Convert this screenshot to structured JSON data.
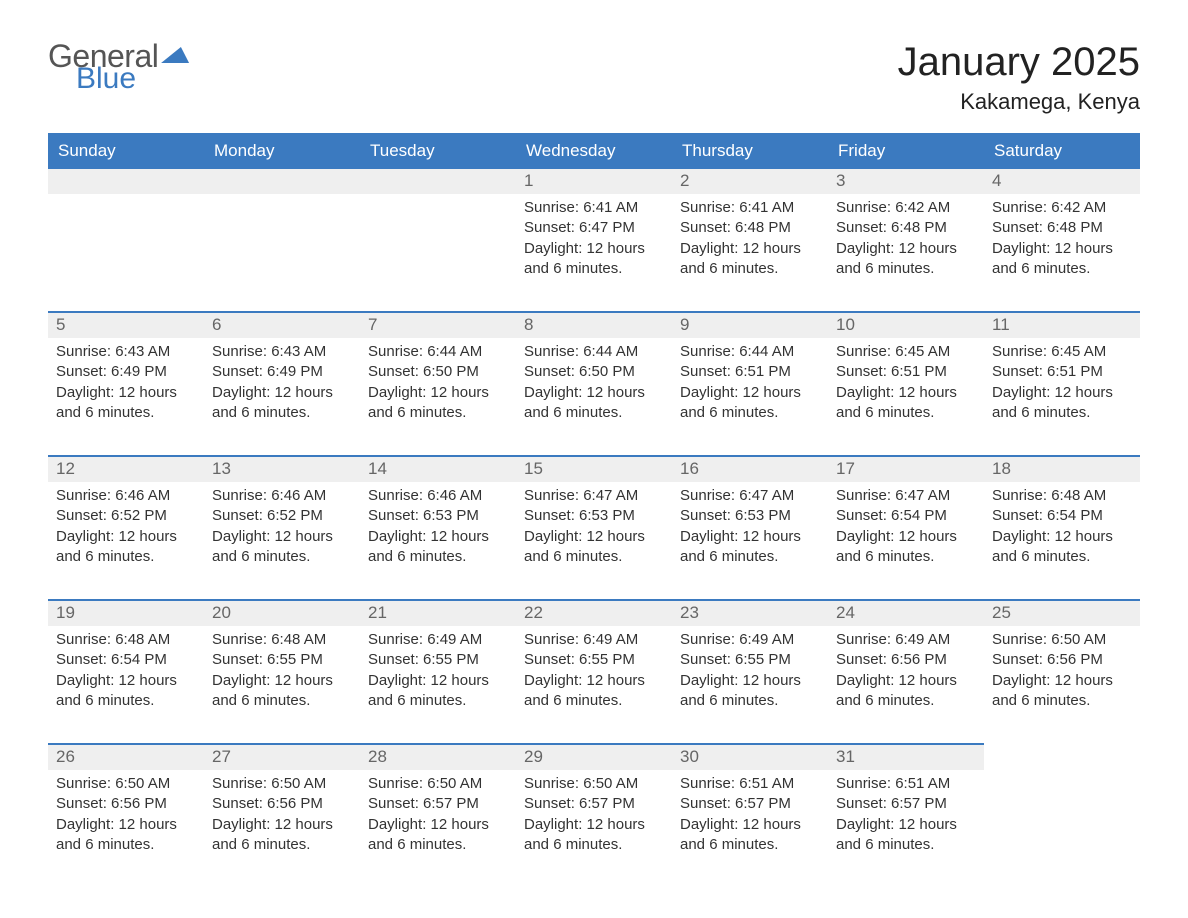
{
  "logo": {
    "part1": "General",
    "part2": "Blue"
  },
  "title": "January 2025",
  "subtitle": "Kakamega, Kenya",
  "colors": {
    "header_bg": "#3b7ac0",
    "header_text": "#ffffff",
    "daynum_bg": "#efefef",
    "daynum_text": "#666666",
    "row_border": "#3b7ac0",
    "body_text": "#333333",
    "page_bg": "#ffffff",
    "logo_gray": "#555555",
    "logo_blue": "#3b7ac0"
  },
  "weekdays": [
    "Sunday",
    "Monday",
    "Tuesday",
    "Wednesday",
    "Thursday",
    "Friday",
    "Saturday"
  ],
  "calendar": {
    "type": "table",
    "first_day_index": 3,
    "days_in_month": 31,
    "day_template": {
      "line1_prefix": "Sunrise: ",
      "line2_prefix": "Sunset: ",
      "line3": "Daylight: 12 hours",
      "line4": "and 6 minutes."
    },
    "days": [
      {
        "n": 1,
        "sunrise": "6:41 AM",
        "sunset": "6:47 PM"
      },
      {
        "n": 2,
        "sunrise": "6:41 AM",
        "sunset": "6:48 PM"
      },
      {
        "n": 3,
        "sunrise": "6:42 AM",
        "sunset": "6:48 PM"
      },
      {
        "n": 4,
        "sunrise": "6:42 AM",
        "sunset": "6:48 PM"
      },
      {
        "n": 5,
        "sunrise": "6:43 AM",
        "sunset": "6:49 PM"
      },
      {
        "n": 6,
        "sunrise": "6:43 AM",
        "sunset": "6:49 PM"
      },
      {
        "n": 7,
        "sunrise": "6:44 AM",
        "sunset": "6:50 PM"
      },
      {
        "n": 8,
        "sunrise": "6:44 AM",
        "sunset": "6:50 PM"
      },
      {
        "n": 9,
        "sunrise": "6:44 AM",
        "sunset": "6:51 PM"
      },
      {
        "n": 10,
        "sunrise": "6:45 AM",
        "sunset": "6:51 PM"
      },
      {
        "n": 11,
        "sunrise": "6:45 AM",
        "sunset": "6:51 PM"
      },
      {
        "n": 12,
        "sunrise": "6:46 AM",
        "sunset": "6:52 PM"
      },
      {
        "n": 13,
        "sunrise": "6:46 AM",
        "sunset": "6:52 PM"
      },
      {
        "n": 14,
        "sunrise": "6:46 AM",
        "sunset": "6:53 PM"
      },
      {
        "n": 15,
        "sunrise": "6:47 AM",
        "sunset": "6:53 PM"
      },
      {
        "n": 16,
        "sunrise": "6:47 AM",
        "sunset": "6:53 PM"
      },
      {
        "n": 17,
        "sunrise": "6:47 AM",
        "sunset": "6:54 PM"
      },
      {
        "n": 18,
        "sunrise": "6:48 AM",
        "sunset": "6:54 PM"
      },
      {
        "n": 19,
        "sunrise": "6:48 AM",
        "sunset": "6:54 PM"
      },
      {
        "n": 20,
        "sunrise": "6:48 AM",
        "sunset": "6:55 PM"
      },
      {
        "n": 21,
        "sunrise": "6:49 AM",
        "sunset": "6:55 PM"
      },
      {
        "n": 22,
        "sunrise": "6:49 AM",
        "sunset": "6:55 PM"
      },
      {
        "n": 23,
        "sunrise": "6:49 AM",
        "sunset": "6:55 PM"
      },
      {
        "n": 24,
        "sunrise": "6:49 AM",
        "sunset": "6:56 PM"
      },
      {
        "n": 25,
        "sunrise": "6:50 AM",
        "sunset": "6:56 PM"
      },
      {
        "n": 26,
        "sunrise": "6:50 AM",
        "sunset": "6:56 PM"
      },
      {
        "n": 27,
        "sunrise": "6:50 AM",
        "sunset": "6:56 PM"
      },
      {
        "n": 28,
        "sunrise": "6:50 AM",
        "sunset": "6:57 PM"
      },
      {
        "n": 29,
        "sunrise": "6:50 AM",
        "sunset": "6:57 PM"
      },
      {
        "n": 30,
        "sunrise": "6:51 AM",
        "sunset": "6:57 PM"
      },
      {
        "n": 31,
        "sunrise": "6:51 AM",
        "sunset": "6:57 PM"
      }
    ]
  }
}
